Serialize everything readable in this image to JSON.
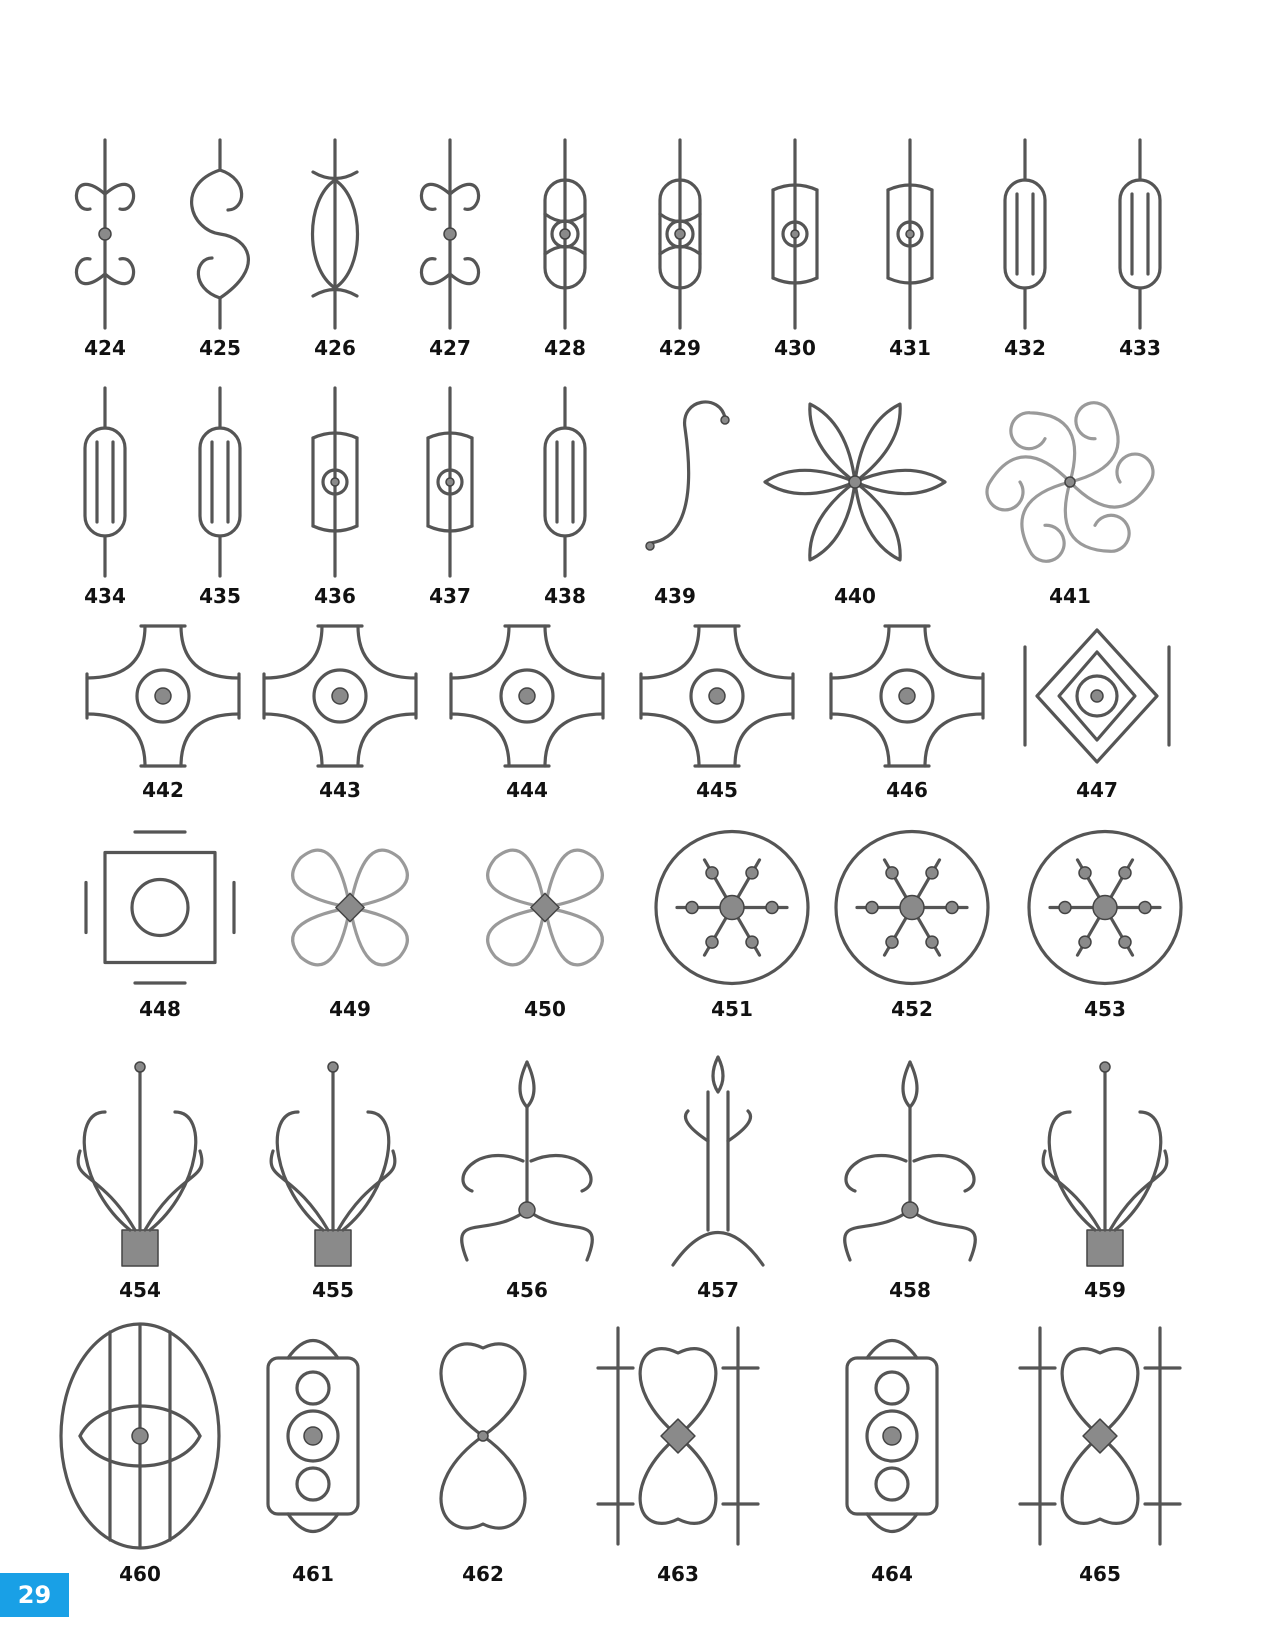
{
  "page_number": "29",
  "rows": [
    {
      "labels": [
        "424",
        "425",
        "426",
        "427",
        "428",
        "429",
        "430",
        "431",
        "432",
        "433"
      ]
    },
    {
      "labels": [
        "434",
        "435",
        "436",
        "437",
        "438",
        "439",
        "440",
        "441"
      ]
    },
    {
      "labels": [
        "442",
        "443",
        "444",
        "445",
        "446",
        "447"
      ]
    },
    {
      "labels": [
        "448",
        "449",
        "450",
        "451",
        "452",
        "453"
      ]
    },
    {
      "labels": [
        "454",
        "455",
        "456",
        "457",
        "458",
        "459"
      ]
    },
    {
      "labels": [
        "460",
        "461",
        "462",
        "463",
        "464",
        "465"
      ]
    }
  ]
}
